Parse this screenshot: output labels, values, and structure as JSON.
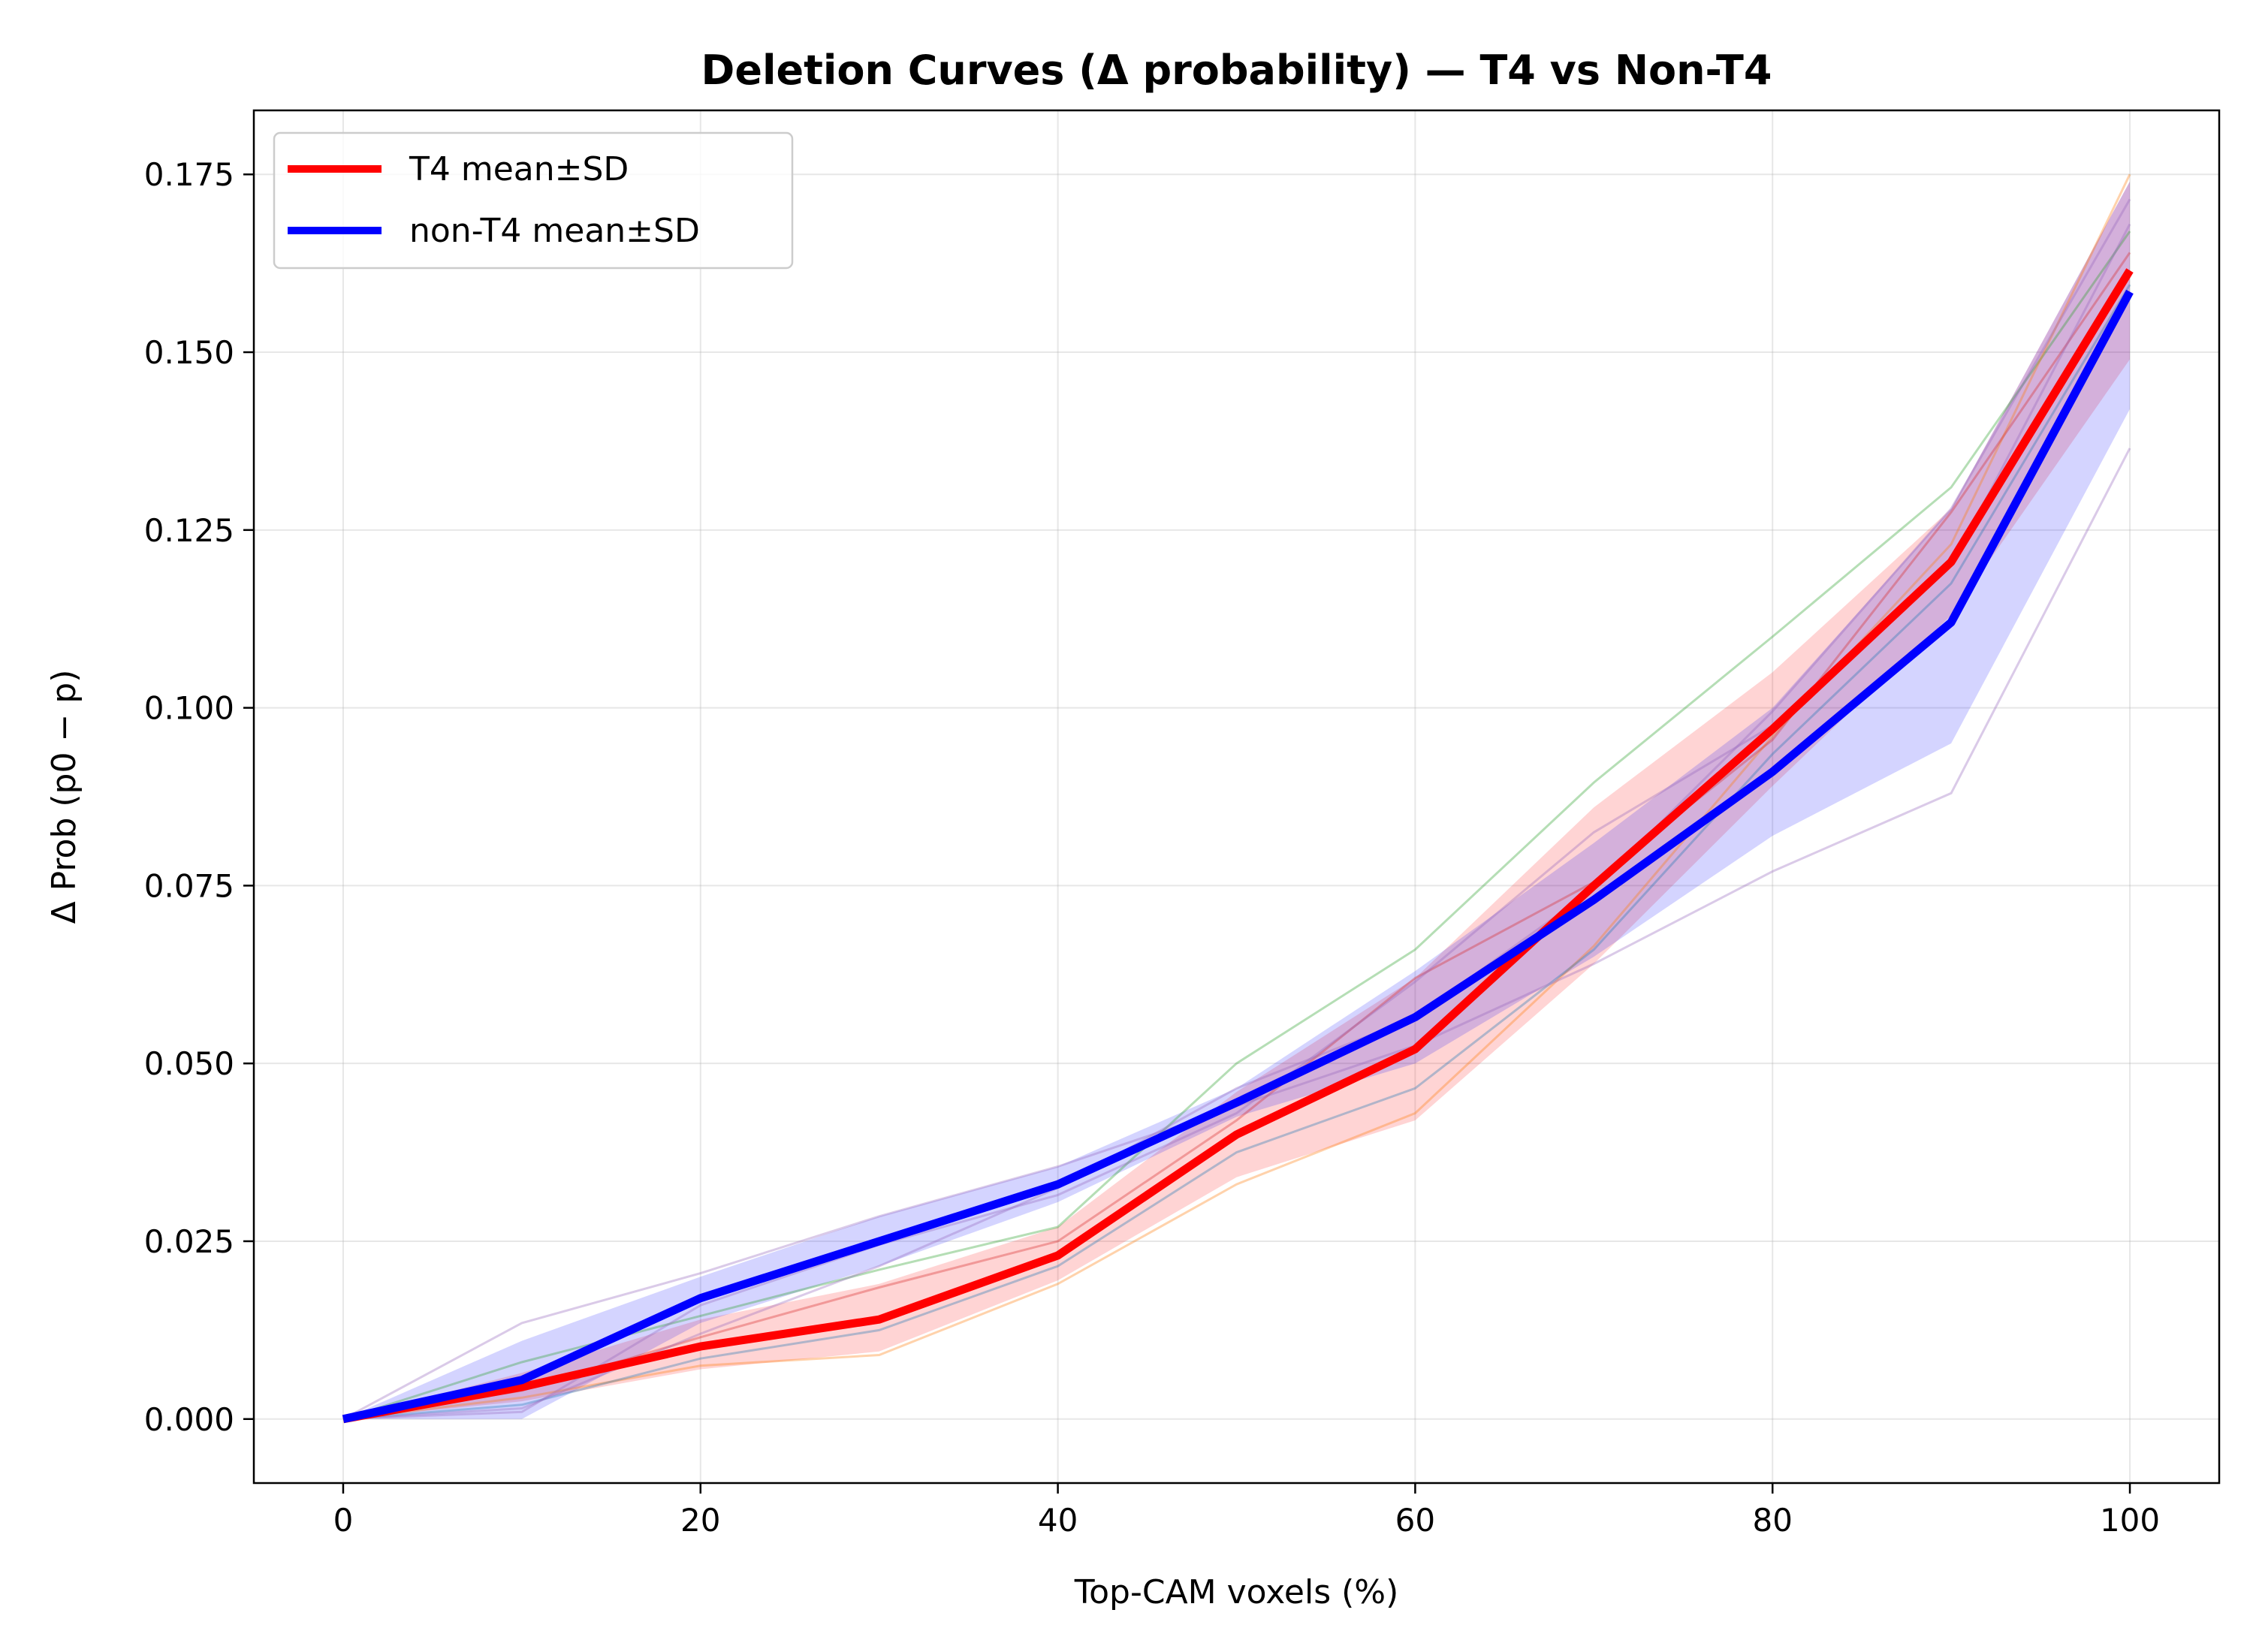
{
  "chart_data": {
    "type": "line",
    "title": "Deletion Curves (Δ probability) — T4 vs Non-T4",
    "xlabel": "Top-CAM voxels (%)",
    "ylabel": "Δ Prob (p0 − p)",
    "xlim": [
      -5,
      105
    ],
    "ylim": [
      -0.009,
      0.184
    ],
    "xticks": [
      0,
      20,
      40,
      60,
      80,
      100
    ],
    "xtick_labels": [
      "0",
      "20",
      "40",
      "60",
      "80",
      "100"
    ],
    "yticks": [
      0.0,
      0.025,
      0.05,
      0.075,
      0.1,
      0.125,
      0.15,
      0.175
    ],
    "ytick_labels": [
      "0.000",
      "0.025",
      "0.050",
      "0.075",
      "0.100",
      "0.125",
      "0.150",
      "0.175"
    ],
    "grid": true,
    "legend_position": "top-left",
    "x": [
      0,
      10,
      20,
      30,
      40,
      50,
      60,
      70,
      80,
      90,
      100
    ],
    "series": [
      {
        "name": "T4 mean±SD",
        "color": "#ff0000",
        "values": [
          0.0,
          0.0045,
          0.0102,
          0.014,
          0.023,
          0.04,
          0.052,
          0.075,
          0.097,
          0.1205,
          0.1615
        ],
        "band_upper": [
          0.0,
          0.0065,
          0.014,
          0.019,
          0.027,
          0.046,
          0.062,
          0.086,
          0.105,
          0.128,
          0.174
        ],
        "band_lower": [
          0.0,
          0.0025,
          0.007,
          0.0095,
          0.0195,
          0.034,
          0.042,
          0.064,
          0.089,
          0.113,
          0.149
        ]
      },
      {
        "name": "non-T4 mean±SD",
        "color": "#0000ff",
        "values": [
          0.0,
          0.0055,
          0.017,
          0.025,
          0.033,
          0.0445,
          0.0565,
          0.073,
          0.091,
          0.112,
          0.1585
        ],
        "band_upper": [
          0.0,
          0.011,
          0.02,
          0.0285,
          0.0355,
          0.0465,
          0.063,
          0.081,
          0.1,
          0.128,
          0.174
        ],
        "band_lower": [
          0.0,
          0.0,
          0.0135,
          0.0215,
          0.0305,
          0.0425,
          0.05,
          0.065,
          0.082,
          0.095,
          0.142
        ]
      }
    ],
    "individual_traces": [
      {
        "color": "#2ca02c",
        "values": [
          0.0,
          0.008,
          0.0145,
          0.021,
          0.027,
          0.05,
          0.066,
          0.0895,
          0.11,
          0.131,
          0.167
        ]
      },
      {
        "color": "#ff7f0e",
        "values": [
          0.0,
          0.003,
          0.0075,
          0.009,
          0.019,
          0.033,
          0.043,
          0.0665,
          0.096,
          0.123,
          0.175
        ]
      },
      {
        "color": "#d62728",
        "values": [
          0.0,
          0.004,
          0.0115,
          0.0185,
          0.025,
          0.042,
          0.062,
          0.0755,
          0.0955,
          0.1275,
          0.164
        ]
      },
      {
        "color": "#1f77b4",
        "values": [
          0.0,
          0.002,
          0.0085,
          0.0125,
          0.0215,
          0.0375,
          0.0465,
          0.066,
          0.0935,
          0.1175,
          0.1595
        ]
      },
      {
        "color": "#9467bd",
        "values": [
          0.0,
          0.0135,
          0.0205,
          0.0285,
          0.0355,
          0.044,
          0.0525,
          0.064,
          0.077,
          0.088,
          0.1365
        ]
      },
      {
        "color": "#9467bd",
        "values": [
          0.0,
          0.0015,
          0.012,
          0.0215,
          0.0325,
          0.0465,
          0.0565,
          0.0745,
          0.0995,
          0.128,
          0.1715
        ]
      },
      {
        "color": "#9467bd",
        "values": [
          0.0,
          0.001,
          0.016,
          0.0245,
          0.0315,
          0.043,
          0.0615,
          0.0825,
          0.0975,
          0.12,
          0.168
        ]
      }
    ]
  }
}
